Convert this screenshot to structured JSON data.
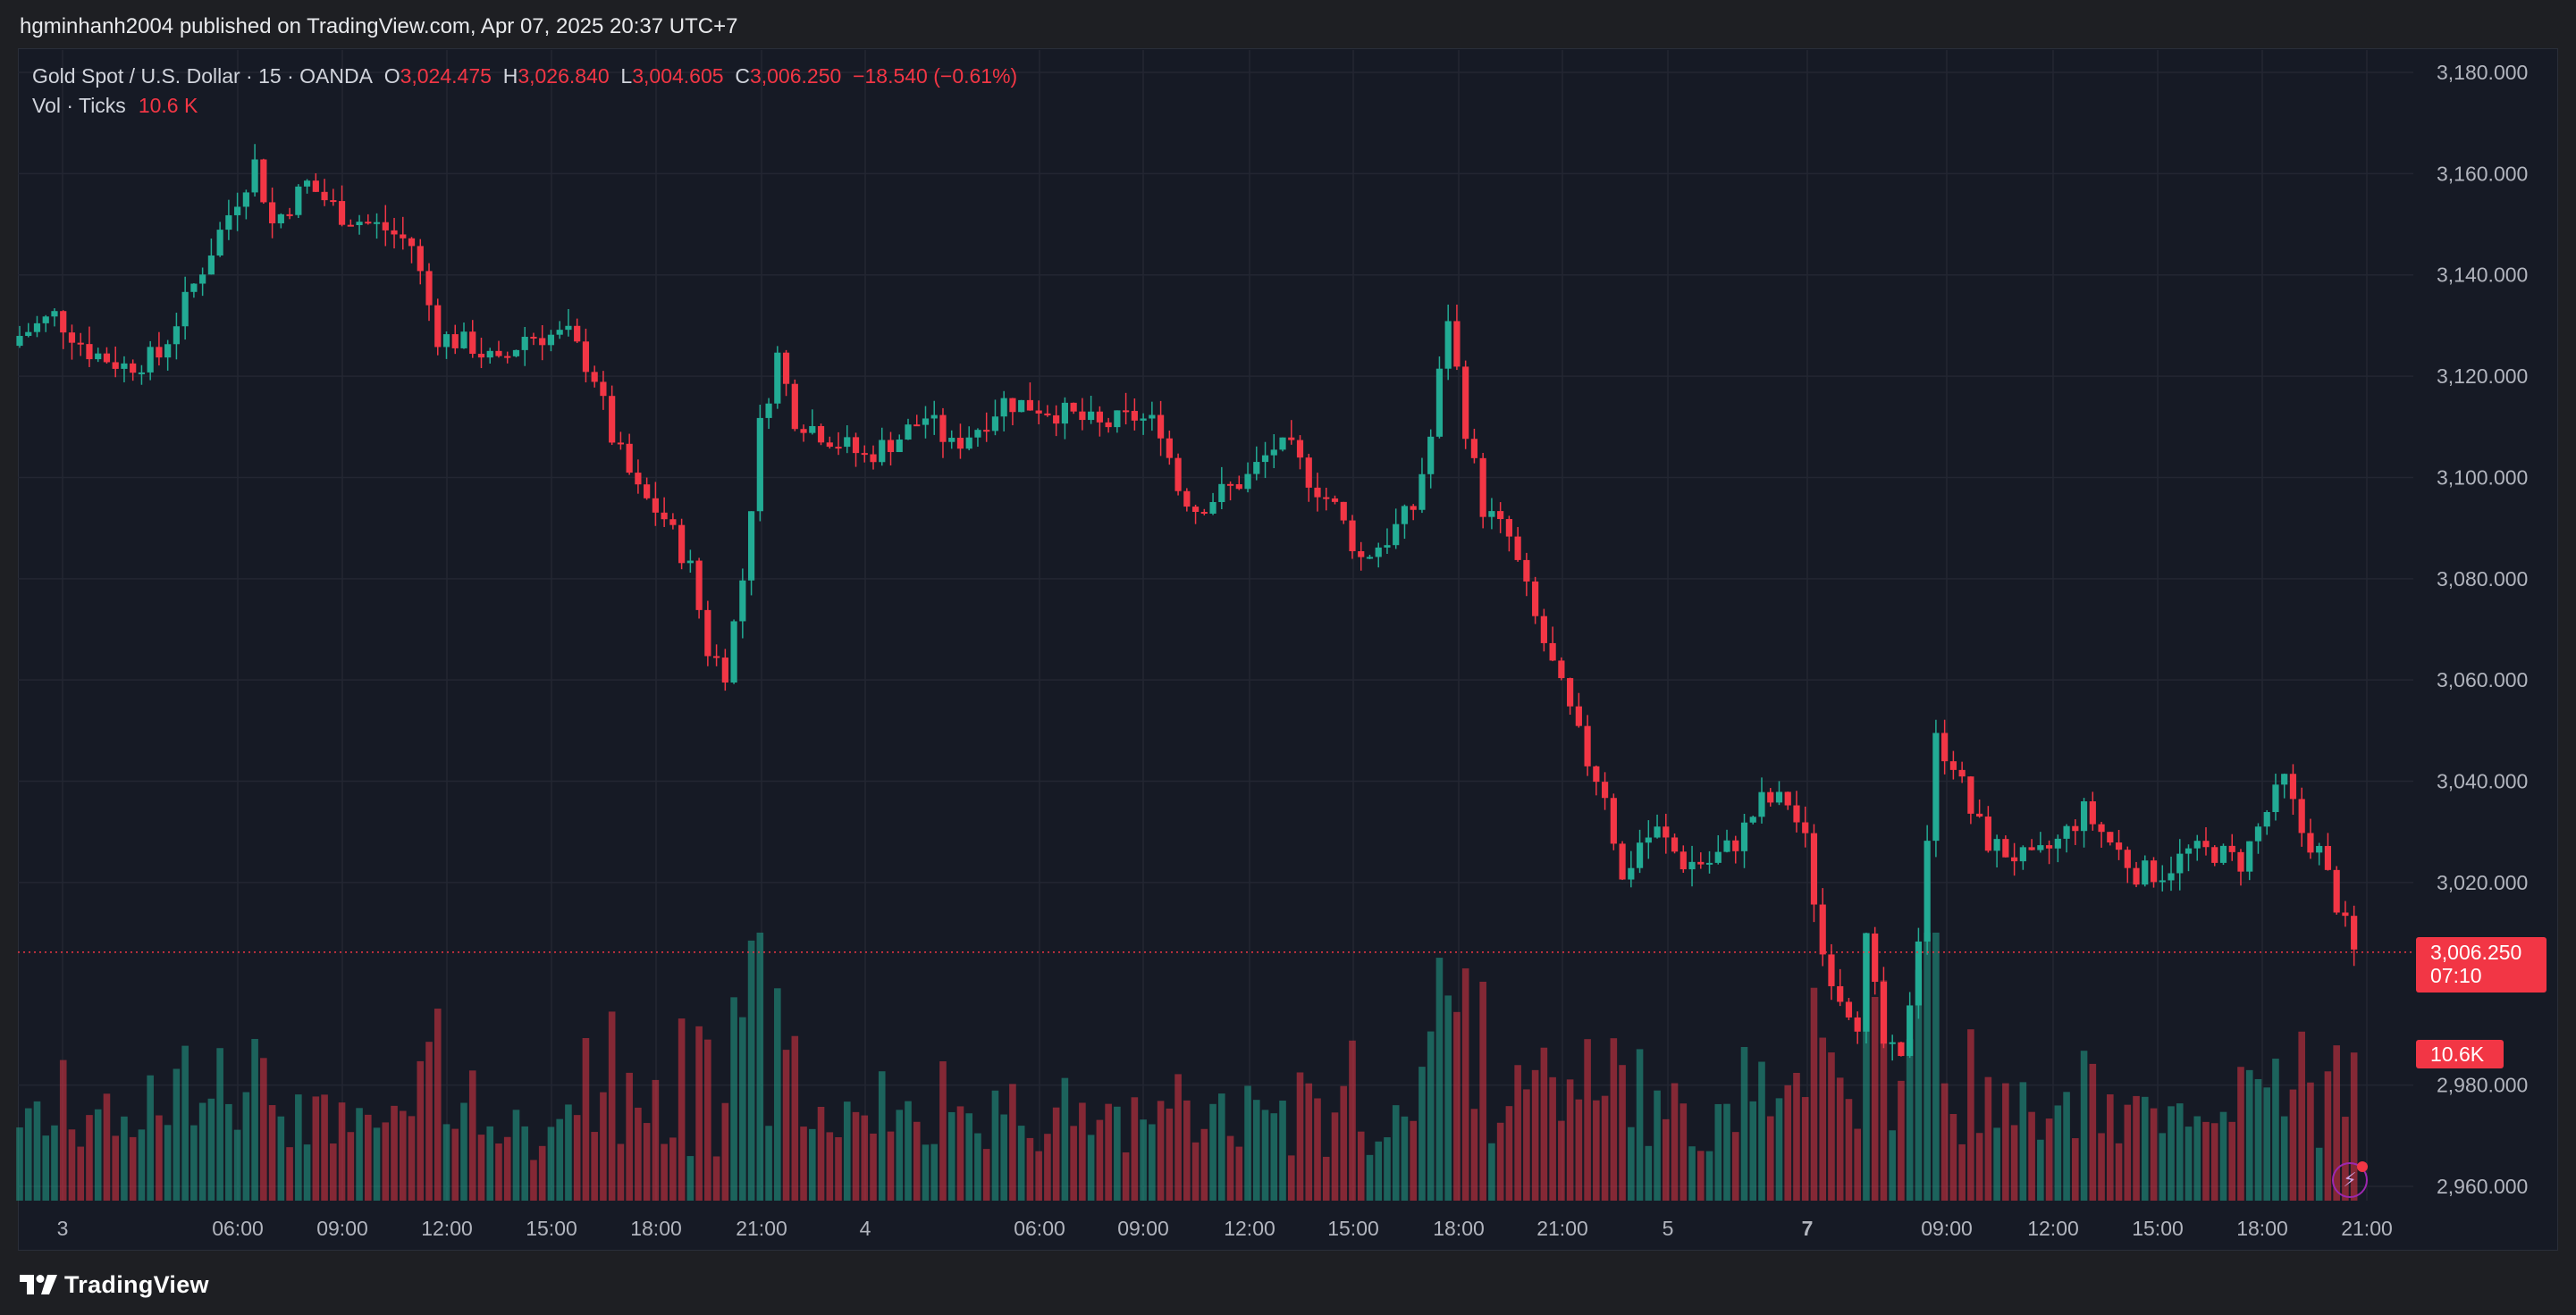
{
  "header": {
    "published": "hgminhanh2004 published on TradingView.com, Apr 07, 2025 20:37 UTC+7"
  },
  "legend": {
    "symbol": "Gold Spot / U.S. Dollar · 15 · OANDA",
    "o_label": "O",
    "o_value": "3,024.475",
    "h_label": "H",
    "h_value": "3,026.840",
    "l_label": "L",
    "l_value": "3,004.605",
    "c_label": "C",
    "c_value": "3,006.250",
    "change": "−18.540 (−0.61%)",
    "vol_label": "Vol · Ticks",
    "vol_value": "10.6 K"
  },
  "price_label": {
    "price": "3,006.250",
    "countdown": "07:10"
  },
  "volume_label": "10.6K",
  "footer": {
    "brand": "TradingView",
    "logo_icon": "tradingview-logo-icon"
  },
  "colors": {
    "up": "#22ab94",
    "down": "#f23645",
    "background": "#161a25",
    "grid": "#232632"
  },
  "chart_data": {
    "type": "candlestick",
    "title": "Gold Spot / U.S. Dollar · 15 · OANDA",
    "ylim": [
      2960,
      3180
    ],
    "y_ticks": [
      "3,180.000",
      "3,160.000",
      "3,140.000",
      "3,120.000",
      "3,100.000",
      "3,080.000",
      "3,060.000",
      "3,040.000",
      "3,020.000",
      "2,980.000",
      "2,960.000"
    ],
    "x_ticks": [
      "3",
      "06:00",
      "09:00",
      "12:00",
      "15:00",
      "18:00",
      "21:00",
      "4",
      "06:00",
      "09:00",
      "12:00",
      "15:00",
      "18:00",
      "21:00",
      "5",
      "7",
      "09:00",
      "12:00",
      "15:00",
      "18:00",
      "21:00"
    ],
    "last_price": 3006.25,
    "close_path": [
      [
        0,
        3128
      ],
      [
        4,
        3132
      ],
      [
        8,
        3125
      ],
      [
        12,
        3122
      ],
      [
        16,
        3124
      ],
      [
        20,
        3138
      ],
      [
        24,
        3152
      ],
      [
        27,
        3162
      ],
      [
        29,
        3150
      ],
      [
        33,
        3158
      ],
      [
        37,
        3152
      ],
      [
        42,
        3149
      ],
      [
        45,
        3146
      ],
      [
        48,
        3128
      ],
      [
        52,
        3126
      ],
      [
        55,
        3122
      ],
      [
        58,
        3128
      ],
      [
        63,
        3128
      ],
      [
        66,
        3120
      ],
      [
        68,
        3108
      ],
      [
        71,
        3097
      ],
      [
        74,
        3092
      ],
      [
        77,
        3082
      ],
      [
        79,
        3066
      ],
      [
        81,
        3062
      ],
      [
        83,
        3080
      ],
      [
        85,
        3110
      ],
      [
        87,
        3124
      ],
      [
        89,
        3112
      ],
      [
        93,
        3108
      ],
      [
        97,
        3104
      ],
      [
        101,
        3108
      ],
      [
        104,
        3112
      ],
      [
        107,
        3106
      ],
      [
        110,
        3110
      ],
      [
        113,
        3115
      ],
      [
        117,
        3114
      ],
      [
        121,
        3112
      ],
      [
        124,
        3110
      ],
      [
        128,
        3112
      ],
      [
        131,
        3110
      ],
      [
        133,
        3098
      ],
      [
        135,
        3094
      ],
      [
        138,
        3097
      ],
      [
        141,
        3100
      ],
      [
        144,
        3106
      ],
      [
        146,
        3105
      ],
      [
        148,
        3100
      ],
      [
        151,
        3094
      ],
      [
        154,
        3084
      ],
      [
        157,
        3088
      ],
      [
        160,
        3094
      ],
      [
        162,
        3108
      ],
      [
        164,
        3132
      ],
      [
        166,
        3110
      ],
      [
        168,
        3094
      ],
      [
        171,
        3088
      ],
      [
        174,
        3072
      ],
      [
        177,
        3058
      ],
      [
        180,
        3044
      ],
      [
        182,
        3038
      ],
      [
        184,
        3020
      ],
      [
        186,
        3028
      ],
      [
        188,
        3030
      ],
      [
        191,
        3024
      ],
      [
        194,
        3024
      ],
      [
        197,
        3028
      ],
      [
        200,
        3036
      ],
      [
        203,
        3036
      ],
      [
        205,
        3028
      ],
      [
        207,
        3006
      ],
      [
        209,
        2998
      ],
      [
        211,
        2993
      ],
      [
        212,
        3008
      ],
      [
        214,
        2988
      ],
      [
        216,
        2984
      ],
      [
        218,
        3010
      ],
      [
        220,
        3048
      ],
      [
        222,
        3044
      ],
      [
        224,
        3034
      ],
      [
        226,
        3028
      ],
      [
        228,
        3026
      ],
      [
        231,
        3024
      ],
      [
        234,
        3028
      ],
      [
        237,
        3034
      ],
      [
        240,
        3028
      ],
      [
        243,
        3022
      ],
      [
        246,
        3022
      ],
      [
        249,
        3026
      ],
      [
        252,
        3026
      ],
      [
        255,
        3024
      ],
      [
        258,
        3034
      ],
      [
        260,
        3040
      ],
      [
        262,
        3030
      ],
      [
        264,
        3026
      ],
      [
        266,
        3016
      ],
      [
        268,
        3006
      ]
    ]
  }
}
